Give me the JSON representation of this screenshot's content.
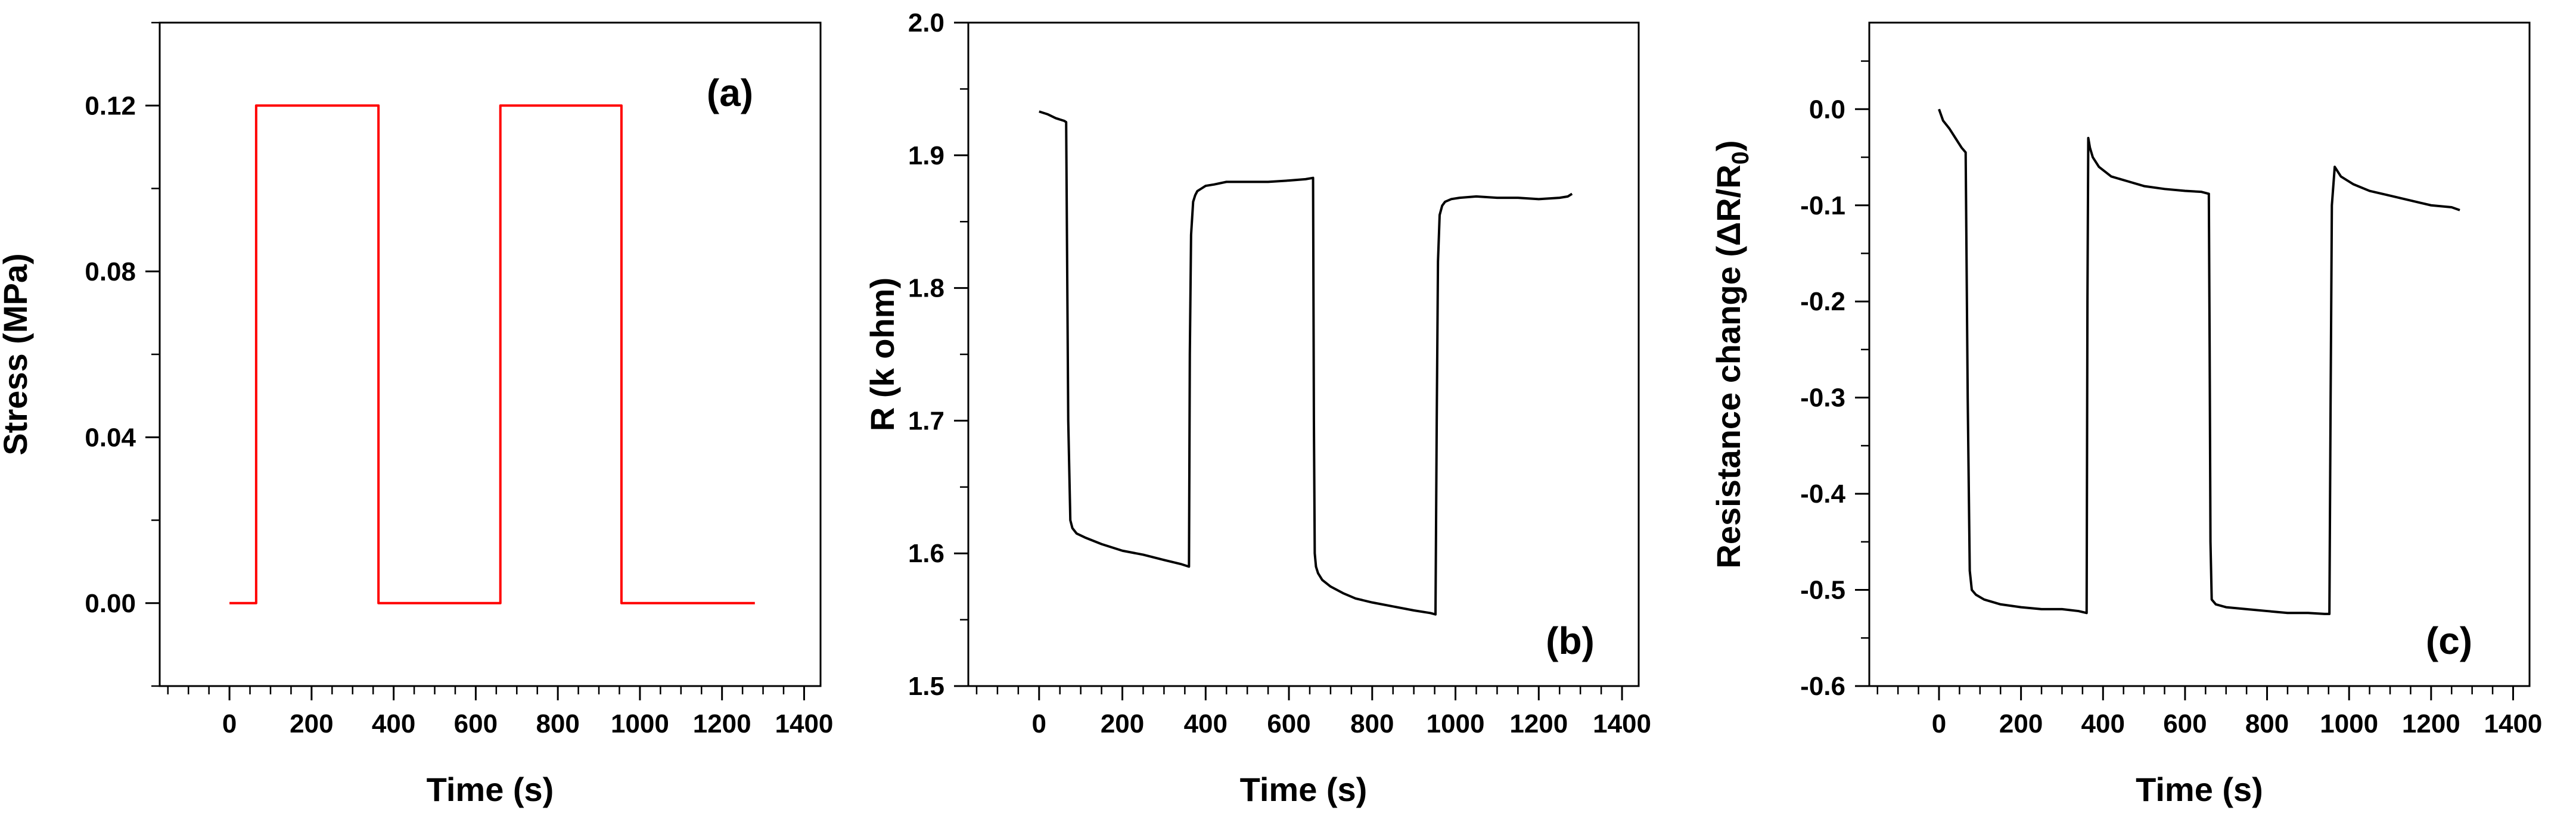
{
  "chart_data": [
    {
      "id": "a",
      "type": "line",
      "panel_label": "(a)",
      "xlabel": "Time (s)",
      "ylabel": "Stress (MPa)",
      "xlim": [
        -170,
        1440
      ],
      "ylim": [
        -0.02,
        0.14
      ],
      "xticks": [
        0,
        200,
        400,
        600,
        800,
        1000,
        1200,
        1400
      ],
      "xtick_labels": [
        "0",
        "200",
        "400",
        "600",
        "800",
        "1000",
        "1200",
        "1400"
      ],
      "xminor": 50,
      "yticks": [
        0.0,
        0.04,
        0.08,
        0.12
      ],
      "ytick_labels": [
        "0.00",
        "0.04",
        "0.08",
        "0.12"
      ],
      "yminor": 0.02,
      "color": "#ff0000",
      "series": [
        {
          "name": "Stress",
          "x": [
            0,
            65,
            65,
            363,
            363,
            660,
            660,
            955,
            955,
            1280
          ],
          "y": [
            0,
            0,
            0.12,
            0.12,
            0,
            0,
            0.12,
            0.12,
            0,
            0
          ]
        }
      ]
    },
    {
      "id": "b",
      "type": "line",
      "panel_label": "(b)",
      "xlabel": "Time (s)",
      "ylabel": "R (k ohm)",
      "xlim": [
        -170,
        1440
      ],
      "ylim": [
        1.5,
        2.0
      ],
      "xticks": [
        0,
        200,
        400,
        600,
        800,
        1000,
        1200,
        1400
      ],
      "xtick_labels": [
        "0",
        "200",
        "400",
        "600",
        "800",
        "1000",
        "1200",
        "1400"
      ],
      "xminor": 50,
      "yticks": [
        1.5,
        1.6,
        1.7,
        1.8,
        1.9,
        2.0
      ],
      "ytick_labels": [
        "1.5",
        "1.6",
        "1.7",
        "1.8",
        "1.9",
        "2.0"
      ],
      "yminor": 0.05,
      "color": "#000000",
      "series": [
        {
          "name": "R",
          "x": [
            0,
            20,
            40,
            60,
            65,
            70,
            75,
            80,
            90,
            110,
            150,
            200,
            250,
            300,
            340,
            360,
            362,
            365,
            370,
            375,
            380,
            390,
            400,
            420,
            450,
            500,
            550,
            600,
            640,
            658,
            660,
            662,
            665,
            670,
            680,
            700,
            730,
            760,
            800,
            850,
            900,
            940,
            952,
            955,
            958,
            962,
            968,
            975,
            990,
            1010,
            1050,
            1100,
            1150,
            1200,
            1250,
            1270,
            1280
          ],
          "y": [
            1.933,
            1.931,
            1.928,
            1.926,
            1.925,
            1.7,
            1.625,
            1.619,
            1.615,
            1.612,
            1.607,
            1.602,
            1.599,
            1.595,
            1.592,
            1.59,
            1.75,
            1.84,
            1.865,
            1.87,
            1.873,
            1.875,
            1.877,
            1.878,
            1.88,
            1.88,
            1.88,
            1.881,
            1.882,
            1.883,
            1.7,
            1.6,
            1.59,
            1.585,
            1.58,
            1.575,
            1.57,
            1.566,
            1.563,
            1.56,
            1.557,
            1.555,
            1.554,
            1.7,
            1.82,
            1.855,
            1.862,
            1.865,
            1.867,
            1.868,
            1.869,
            1.868,
            1.868,
            1.867,
            1.868,
            1.869,
            1.871
          ]
        }
      ]
    },
    {
      "id": "c",
      "type": "line",
      "panel_label": "(c)",
      "xlabel": "Time (s)",
      "ylabel": "Resistance change (",
      "ylabel_symbol": "ΔR/R",
      "ylabel_subscript": "0",
      "ylabel_end": ")",
      "xlim": [
        -170,
        1440
      ],
      "ylim": [
        -0.6,
        0.09
      ],
      "xticks": [
        0,
        200,
        400,
        600,
        800,
        1000,
        1200,
        1400
      ],
      "xtick_labels": [
        "0",
        "200",
        "400",
        "600",
        "800",
        "1000",
        "1200",
        "1400"
      ],
      "xminor": 50,
      "yticks": [
        -0.6,
        -0.5,
        -0.4,
        -0.3,
        -0.2,
        -0.1,
        0.0
      ],
      "ytick_labels": [
        "-0.6",
        "-0.5",
        "-0.4",
        "-0.3",
        "-0.2",
        "-0.1",
        "0.0"
      ],
      "yminor": 0.05,
      "color": "#000000",
      "series": [
        {
          "name": "Resistance change",
          "x": [
            0,
            10,
            25,
            40,
            55,
            65,
            70,
            75,
            80,
            90,
            110,
            150,
            200,
            250,
            300,
            340,
            360,
            362,
            364,
            368,
            375,
            390,
            420,
            460,
            500,
            550,
            600,
            640,
            658,
            660,
            662,
            665,
            675,
            700,
            750,
            800,
            850,
            900,
            940,
            952,
            955,
            958,
            965,
            980,
            1010,
            1050,
            1100,
            1150,
            1200,
            1250,
            1270
          ],
          "y": [
            0.0,
            -0.012,
            -0.02,
            -0.03,
            -0.04,
            -0.045,
            -0.3,
            -0.48,
            -0.5,
            -0.505,
            -0.51,
            -0.515,
            -0.518,
            -0.52,
            -0.52,
            -0.522,
            -0.524,
            -0.2,
            -0.03,
            -0.04,
            -0.05,
            -0.06,
            -0.07,
            -0.075,
            -0.08,
            -0.083,
            -0.085,
            -0.086,
            -0.088,
            -0.25,
            -0.45,
            -0.51,
            -0.515,
            -0.518,
            -0.52,
            -0.522,
            -0.524,
            -0.524,
            -0.525,
            -0.525,
            -0.3,
            -0.1,
            -0.06,
            -0.07,
            -0.078,
            -0.085,
            -0.09,
            -0.095,
            -0.1,
            -0.102,
            -0.105
          ]
        }
      ]
    }
  ]
}
